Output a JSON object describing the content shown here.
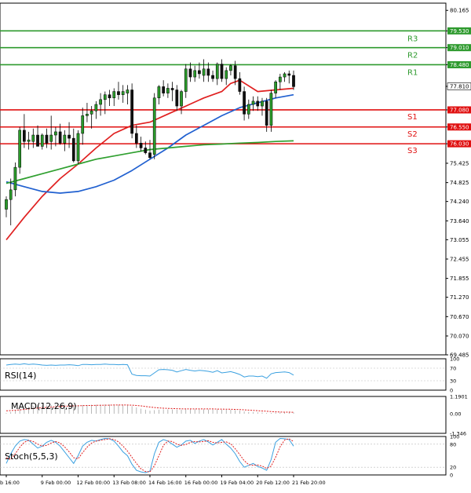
{
  "chart_data": {
    "type": "candlestick",
    "price_axis": {
      "labels": [
        "80.165",
        "79.530",
        "79.010",
        "78.480",
        "77.810",
        "77.080",
        "76.550",
        "76.030",
        "75.425",
        "74.825",
        "74.240",
        "73.640",
        "73.055",
        "72.455",
        "71.855",
        "71.270",
        "70.670",
        "70.070",
        "69.485"
      ],
      "ylim": [
        69.485,
        80.39
      ]
    },
    "time_axis": {
      "labels": [
        "b 16:00",
        "9 Feb 00:00",
        "12 Feb 00:00",
        "13 Feb 08:00",
        "14 Feb 16:00",
        "16 Feb 00:00",
        "19 Feb 04:00",
        "20 Feb 12:00",
        "21 Feb 20:00"
      ],
      "label_bars": [
        0,
        8,
        16,
        24,
        32,
        40,
        48,
        56,
        64
      ]
    },
    "levels": [
      {
        "name": "R3",
        "value": 79.53,
        "color": "#2e9a2e"
      },
      {
        "name": "R2",
        "value": 79.01,
        "color": "#2e9a2e"
      },
      {
        "name": "R1",
        "value": 78.48,
        "color": "#2e9a2e"
      },
      {
        "name": "S1",
        "value": 77.08,
        "color": "#e01010"
      },
      {
        "name": "S2",
        "value": 76.55,
        "color": "#e01010"
      },
      {
        "name": "S3",
        "value": 76.03,
        "color": "#e01010"
      }
    ],
    "current_price": {
      "value": 77.81,
      "label": "77.810"
    },
    "candles": [
      [
        74.0,
        74.4,
        73.75,
        74.3
      ],
      [
        74.3,
        74.95,
        73.5,
        74.6
      ],
      [
        74.6,
        75.45,
        74.4,
        75.3
      ],
      [
        75.3,
        76.55,
        75.1,
        76.45
      ],
      [
        76.45,
        76.95,
        75.9,
        76.1
      ],
      [
        76.1,
        76.4,
        75.85,
        76.15
      ],
      [
        76.1,
        76.5,
        75.9,
        76.3
      ],
      [
        76.3,
        76.6,
        75.95,
        75.95
      ],
      [
        75.95,
        76.35,
        75.85,
        76.3
      ],
      [
        76.3,
        76.5,
        75.9,
        76.05
      ],
      [
        76.1,
        76.9,
        75.85,
        76.3
      ],
      [
        76.3,
        76.55,
        75.95,
        76.4
      ],
      [
        76.4,
        76.65,
        76.0,
        76.05
      ],
      [
        76.05,
        76.45,
        75.8,
        76.3
      ],
      [
        76.3,
        76.7,
        75.9,
        76.2
      ],
      [
        76.2,
        76.5,
        75.45,
        75.5
      ],
      [
        75.5,
        76.45,
        75.4,
        76.35
      ],
      [
        76.35,
        77.15,
        76.0,
        76.9
      ],
      [
        76.9,
        77.3,
        76.7,
        76.95
      ],
      [
        76.95,
        77.2,
        76.5,
        77.05
      ],
      [
        77.05,
        77.35,
        76.8,
        77.25
      ],
      [
        77.25,
        77.6,
        76.9,
        77.4
      ],
      [
        77.4,
        77.65,
        76.95,
        77.55
      ],
      [
        77.55,
        77.7,
        77.2,
        77.45
      ],
      [
        77.45,
        77.75,
        77.2,
        77.65
      ],
      [
        77.65,
        77.95,
        77.4,
        77.55
      ],
      [
        77.55,
        77.85,
        77.3,
        77.65
      ],
      [
        77.6,
        77.85,
        77.25,
        77.7
      ],
      [
        77.7,
        77.9,
        76.2,
        76.35
      ],
      [
        76.35,
        76.6,
        75.9,
        76.05
      ],
      [
        76.05,
        76.25,
        75.8,
        75.9
      ],
      [
        75.9,
        76.1,
        75.7,
        75.75
      ],
      [
        75.75,
        76.15,
        75.55,
        75.6
      ],
      [
        75.7,
        77.6,
        75.55,
        77.45
      ],
      [
        77.45,
        77.85,
        77.25,
        77.8
      ],
      [
        77.8,
        78.0,
        77.5,
        77.6
      ],
      [
        77.6,
        77.9,
        77.45,
        77.75
      ],
      [
        77.75,
        77.95,
        77.35,
        77.7
      ],
      [
        77.7,
        77.85,
        77.05,
        77.2
      ],
      [
        77.2,
        77.7,
        76.95,
        77.65
      ],
      [
        77.65,
        78.5,
        77.45,
        78.35
      ],
      [
        78.35,
        78.55,
        77.95,
        78.1
      ],
      [
        78.1,
        78.45,
        77.95,
        78.3
      ],
      [
        78.3,
        78.55,
        78.05,
        78.2
      ],
      [
        78.15,
        78.65,
        77.95,
        78.35
      ],
      [
        78.35,
        78.55,
        77.95,
        78.15
      ],
      [
        78.15,
        78.3,
        77.95,
        78.05
      ],
      [
        78.05,
        78.55,
        77.85,
        78.5
      ],
      [
        78.5,
        78.65,
        77.95,
        78.05
      ],
      [
        78.05,
        78.4,
        77.85,
        78.3
      ],
      [
        78.3,
        78.5,
        78.15,
        78.45
      ],
      [
        78.45,
        78.6,
        77.85,
        78.05
      ],
      [
        78.05,
        78.25,
        77.55,
        77.65
      ],
      [
        77.65,
        77.8,
        76.75,
        76.95
      ],
      [
        76.95,
        77.4,
        76.8,
        77.25
      ],
      [
        77.25,
        77.5,
        77.05,
        77.35
      ],
      [
        77.35,
        77.5,
        77.05,
        77.2
      ],
      [
        77.2,
        77.45,
        76.9,
        77.35
      ],
      [
        77.35,
        77.45,
        76.4,
        76.6
      ],
      [
        76.6,
        77.7,
        76.4,
        77.6
      ],
      [
        77.6,
        78.0,
        77.45,
        77.95
      ],
      [
        77.95,
        78.2,
        77.7,
        78.1
      ],
      [
        78.1,
        78.25,
        77.95,
        78.2
      ],
      [
        78.2,
        78.3,
        77.9,
        78.15
      ],
      [
        78.15,
        78.3,
        77.7,
        77.8
      ]
    ],
    "moving_averages": [
      {
        "color": "#e02020",
        "values": [
          [
            0,
            73.05
          ],
          [
            4,
            73.75
          ],
          [
            8,
            74.4
          ],
          [
            12,
            74.95
          ],
          [
            16,
            75.4
          ],
          [
            20,
            75.9
          ],
          [
            24,
            76.35
          ],
          [
            28,
            76.6
          ],
          [
            32,
            76.7
          ],
          [
            36,
            76.95
          ],
          [
            40,
            77.2
          ],
          [
            44,
            77.45
          ],
          [
            48,
            77.65
          ],
          [
            50,
            77.9
          ],
          [
            52,
            78.0
          ],
          [
            56,
            77.65
          ],
          [
            60,
            77.7
          ],
          [
            64,
            77.75
          ]
        ]
      },
      {
        "color": "#2060d0",
        "values": [
          [
            0,
            74.85
          ],
          [
            4,
            74.7
          ],
          [
            8,
            74.55
          ],
          [
            12,
            74.5
          ],
          [
            16,
            74.55
          ],
          [
            20,
            74.7
          ],
          [
            24,
            74.9
          ],
          [
            28,
            75.2
          ],
          [
            32,
            75.55
          ],
          [
            36,
            75.9
          ],
          [
            40,
            76.3
          ],
          [
            44,
            76.6
          ],
          [
            48,
            76.9
          ],
          [
            52,
            77.15
          ],
          [
            56,
            77.3
          ],
          [
            60,
            77.45
          ],
          [
            64,
            77.55
          ]
        ]
      },
      {
        "color": "#30a030",
        "values": [
          [
            0,
            74.8
          ],
          [
            4,
            74.95
          ],
          [
            8,
            75.1
          ],
          [
            12,
            75.25
          ],
          [
            16,
            75.4
          ],
          [
            20,
            75.55
          ],
          [
            24,
            75.65
          ],
          [
            28,
            75.75
          ],
          [
            32,
            75.85
          ],
          [
            36,
            75.9
          ],
          [
            40,
            75.95
          ],
          [
            44,
            76.0
          ],
          [
            48,
            76.02
          ],
          [
            52,
            76.05
          ],
          [
            56,
            76.07
          ],
          [
            60,
            76.1
          ],
          [
            64,
            76.12
          ]
        ]
      }
    ],
    "rsi": {
      "label": "RSI(14)",
      "axis_labels": [
        "100",
        "70",
        "30",
        "0"
      ],
      "ylim": [
        0,
        100
      ],
      "values": [
        80,
        82,
        83,
        82,
        84,
        82,
        83,
        82,
        80,
        79,
        80,
        79,
        80,
        80,
        81,
        80,
        78,
        82,
        82,
        81,
        82,
        82,
        83,
        82,
        82,
        81,
        82,
        81,
        51,
        47,
        46,
        46,
        45,
        55,
        65,
        66,
        65,
        63,
        58,
        62,
        66,
        63,
        61,
        63,
        62,
        60,
        57,
        62,
        55,
        57,
        59,
        55,
        50,
        42,
        45,
        45,
        43,
        45,
        38,
        52,
        56,
        57,
        58,
        56,
        48
      ]
    },
    "macd": {
      "label": "MACD(12,26,9)",
      "axis_labels": [
        "1.1901",
        "0.00",
        "-1.346"
      ],
      "ylim": [
        -1.346,
        1.1901
      ],
      "histogram": [
        0.05,
        0.12,
        0.22,
        0.32,
        0.4,
        0.48,
        0.52,
        0.55,
        0.57,
        0.58,
        0.6,
        0.62,
        0.62,
        0.63,
        0.62,
        0.6,
        0.58,
        0.6,
        0.6,
        0.62,
        0.62,
        0.63,
        0.64,
        0.64,
        0.63,
        0.62,
        0.62,
        0.61,
        0.52,
        0.43,
        0.35,
        0.28,
        0.21,
        0.25,
        0.28,
        0.3,
        0.3,
        0.3,
        0.28,
        0.28,
        0.3,
        0.3,
        0.31,
        0.31,
        0.31,
        0.3,
        0.29,
        0.3,
        0.28,
        0.27,
        0.27,
        0.25,
        0.22,
        0.16,
        0.13,
        0.12,
        0.1,
        0.09,
        0.05,
        0.06,
        0.08,
        0.09,
        0.1,
        0.1,
        0.09
      ],
      "signal": [
        0.2,
        0.22,
        0.24,
        0.27,
        0.3,
        0.33,
        0.36,
        0.39,
        0.42,
        0.44,
        0.46,
        0.48,
        0.5,
        0.52,
        0.53,
        0.54,
        0.55,
        0.56,
        0.57,
        0.57,
        0.58,
        0.58,
        0.59,
        0.59,
        0.6,
        0.6,
        0.6,
        0.6,
        0.59,
        0.57,
        0.54,
        0.5,
        0.46,
        0.43,
        0.4,
        0.38,
        0.37,
        0.36,
        0.35,
        0.34,
        0.33,
        0.33,
        0.33,
        0.33,
        0.33,
        0.33,
        0.33,
        0.32,
        0.32,
        0.31,
        0.31,
        0.3,
        0.29,
        0.27,
        0.25,
        0.23,
        0.21,
        0.19,
        0.17,
        0.15,
        0.13,
        0.12,
        0.11,
        0.11,
        0.1
      ]
    },
    "stoch": {
      "label": "Stoch(5,5,3)",
      "axis_labels": [
        "100",
        "80",
        "20",
        "0"
      ],
      "ylim": [
        0,
        100
      ],
      "main": [
        30,
        55,
        75,
        88,
        92,
        90,
        80,
        70,
        75,
        85,
        90,
        85,
        75,
        60,
        45,
        30,
        50,
        75,
        85,
        90,
        88,
        92,
        95,
        94,
        88,
        75,
        60,
        50,
        28,
        12,
        8,
        6,
        10,
        55,
        85,
        92,
        88,
        80,
        72,
        78,
        88,
        90,
        82,
        88,
        92,
        86,
        78,
        85,
        92,
        80,
        70,
        55,
        35,
        20,
        25,
        30,
        22,
        18,
        12,
        40,
        85,
        95,
        94,
        92,
        75
      ],
      "signal": [
        45,
        40,
        55,
        72,
        85,
        90,
        87,
        80,
        75,
        77,
        83,
        87,
        83,
        73,
        60,
        45,
        42,
        58,
        72,
        83,
        88,
        90,
        92,
        94,
        92,
        86,
        75,
        62,
        46,
        30,
        16,
        9,
        8,
        24,
        50,
        77,
        88,
        87,
        80,
        77,
        79,
        85,
        87,
        86,
        87,
        89,
        85,
        83,
        85,
        86,
        81,
        68,
        53,
        37,
        27,
        25,
        26,
        23,
        17,
        23,
        46,
        73,
        91,
        94,
        87
      ]
    }
  }
}
